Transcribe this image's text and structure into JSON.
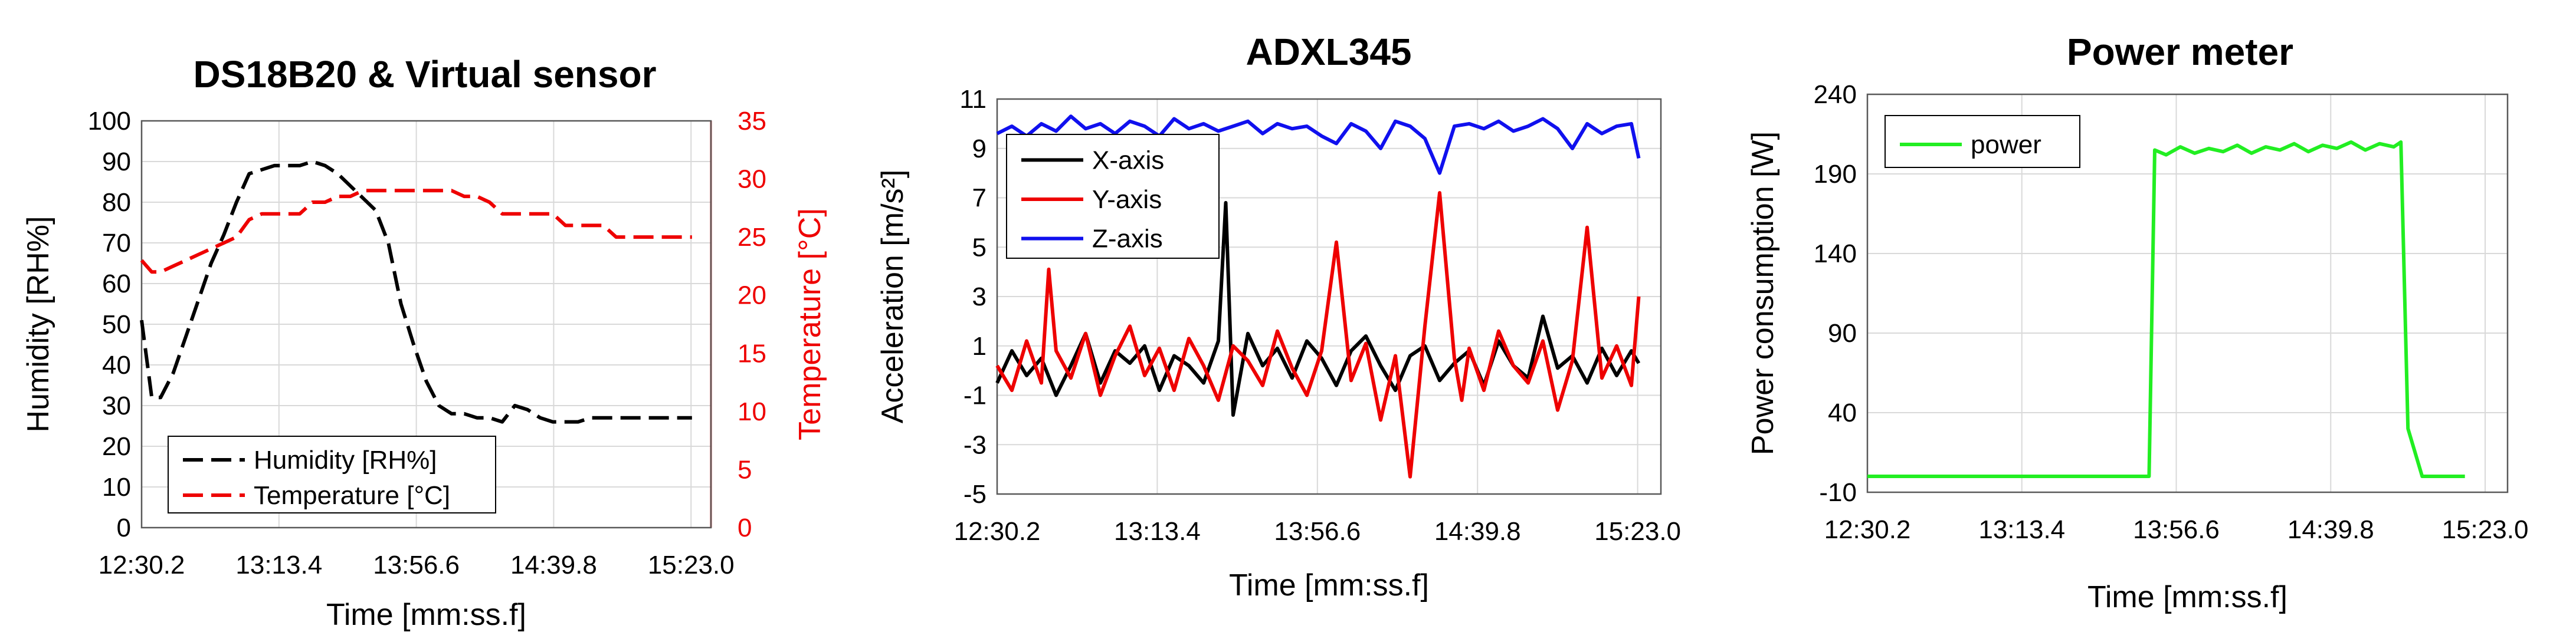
{
  "charts": [
    {
      "type": "line",
      "title": "DS18B20 & Virtual sensor",
      "xlabel": "Time [mm:ss.f]",
      "ylabel": "Humidity [RH%]",
      "y2label": "Temperature [°C]",
      "x_ticks": [
        "12:30.2",
        "13:13.4",
        "13:56.6",
        "14:39.8",
        "15:23.0"
      ],
      "xlim": [
        0,
        4.5
      ],
      "ylim": [
        0,
        100
      ],
      "y_ticks": [
        0,
        10,
        20,
        30,
        40,
        50,
        60,
        70,
        80,
        90,
        100
      ],
      "y2lim": [
        0,
        35
      ],
      "y2_ticks": [
        0,
        5,
        10,
        15,
        20,
        25,
        30,
        35
      ],
      "grid": true,
      "legend_position": "bottom-left",
      "series": [
        {
          "name": "Humidity [RH%]",
          "color": "#000000",
          "axis": "left",
          "dash": true,
          "x": [
            0,
            0.08,
            0.15,
            0.25,
            0.35,
            0.45,
            0.55,
            0.65,
            0.75,
            0.85,
            0.95,
            1.05,
            1.15,
            1.25,
            1.35,
            1.45,
            1.55,
            1.65,
            1.75,
            1.85,
            1.95,
            2.05,
            2.15,
            2.25,
            2.35,
            2.45,
            2.55,
            2.65,
            2.75,
            2.85,
            2.95,
            3.05,
            3.15,
            3.25,
            3.35,
            3.45,
            3.55,
            3.65,
            3.75,
            3.85,
            3.95,
            4.05,
            4.15,
            4.25,
            4.35
          ],
          "values": [
            51,
            32,
            32,
            38,
            47,
            56,
            65,
            72,
            80,
            87,
            88,
            89,
            89,
            89,
            90,
            89,
            87,
            84,
            81,
            78,
            70,
            55,
            45,
            36,
            30,
            28,
            28,
            27,
            27,
            26,
            30,
            29,
            27,
            26,
            26,
            26,
            27,
            27,
            27,
            27,
            27,
            27,
            27,
            27,
            27
          ]
        },
        {
          "name": "Temperature [°C]",
          "color": "#ee0000",
          "axis": "right",
          "dash": true,
          "x": [
            0,
            0.08,
            0.15,
            0.25,
            0.35,
            0.45,
            0.55,
            0.65,
            0.75,
            0.85,
            0.95,
            1.05,
            1.15,
            1.25,
            1.35,
            1.45,
            1.55,
            1.65,
            1.75,
            1.85,
            1.95,
            2.05,
            2.15,
            2.25,
            2.35,
            2.45,
            2.55,
            2.65,
            2.75,
            2.85,
            2.95,
            3.05,
            3.15,
            3.25,
            3.35,
            3.45,
            3.55,
            3.65,
            3.75,
            3.85,
            3.95,
            4.05,
            4.15,
            4.25,
            4.35
          ],
          "values": [
            23,
            22,
            22,
            22.5,
            23,
            23.5,
            24,
            24.5,
            25,
            26.5,
            27,
            27,
            27,
            27,
            28,
            28,
            28.5,
            28.5,
            29,
            29,
            29,
            29,
            29,
            29,
            29,
            29,
            28.5,
            28.5,
            28,
            27,
            27,
            27,
            27,
            27,
            26,
            26,
            26,
            26,
            25,
            25,
            25,
            25,
            25,
            25,
            25
          ]
        }
      ]
    },
    {
      "type": "line",
      "title": "ADXL345",
      "xlabel": "Time [mm:ss.f]",
      "ylabel": "Acceleration [m/s²]",
      "x_ticks": [
        "12:30.2",
        "13:13.4",
        "13:56.6",
        "14:39.8",
        "15:23.0"
      ],
      "xlim": [
        0,
        4.5
      ],
      "ylim": [
        -5,
        11
      ],
      "y_ticks": [
        -5,
        -3,
        -1,
        1,
        3,
        5,
        7,
        9,
        11
      ],
      "grid": true,
      "legend_position": "top-left",
      "series": [
        {
          "name": "X-axis",
          "color": "#000000",
          "axis": "left",
          "x": [
            0,
            0.1,
            0.2,
            0.3,
            0.4,
            0.5,
            0.6,
            0.7,
            0.8,
            0.9,
            1.0,
            1.1,
            1.2,
            1.3,
            1.4,
            1.5,
            1.55,
            1.6,
            1.7,
            1.8,
            1.9,
            2.0,
            2.1,
            2.2,
            2.3,
            2.4,
            2.5,
            2.6,
            2.7,
            2.8,
            2.9,
            3.0,
            3.1,
            3.2,
            3.3,
            3.4,
            3.5,
            3.6,
            3.7,
            3.8,
            3.9,
            4.0,
            4.1,
            4.2,
            4.3,
            4.35
          ],
          "values": [
            -0.5,
            0.8,
            -0.2,
            0.5,
            -1.0,
            0.2,
            1.5,
            -0.5,
            0.8,
            0.3,
            1.0,
            -0.8,
            0.6,
            0.2,
            -0.5,
            1.2,
            6.8,
            -1.8,
            1.5,
            0.2,
            0.9,
            -0.3,
            1.2,
            0.5,
            -0.6,
            0.8,
            1.4,
            0.2,
            -0.8,
            0.6,
            1.0,
            -0.4,
            0.3,
            0.8,
            -0.6,
            1.2,
            0.2,
            -0.3,
            2.2,
            0.1,
            0.6,
            -0.5,
            0.9,
            -0.2,
            0.8,
            0.3
          ]
        },
        {
          "name": "Y-axis",
          "color": "#ee0000",
          "axis": "left",
          "x": [
            0,
            0.1,
            0.2,
            0.3,
            0.35,
            0.4,
            0.5,
            0.6,
            0.7,
            0.8,
            0.9,
            1.0,
            1.1,
            1.2,
            1.3,
            1.4,
            1.5,
            1.6,
            1.7,
            1.8,
            1.9,
            2.0,
            2.1,
            2.2,
            2.3,
            2.4,
            2.5,
            2.6,
            2.7,
            2.8,
            2.9,
            3.0,
            3.1,
            3.15,
            3.2,
            3.3,
            3.4,
            3.5,
            3.6,
            3.7,
            3.8,
            3.9,
            4.0,
            4.1,
            4.2,
            4.3,
            4.35
          ],
          "values": [
            0.2,
            -0.8,
            1.2,
            -0.5,
            4.1,
            0.8,
            -0.3,
            1.5,
            -1.0,
            0.6,
            1.8,
            -0.2,
            0.9,
            -0.8,
            1.3,
            0.2,
            -1.2,
            1.0,
            0.4,
            -0.6,
            1.6,
            0.1,
            -1.0,
            0.8,
            5.2,
            -0.4,
            1.1,
            -2.0,
            0.6,
            -4.3,
            1.8,
            7.2,
            0.5,
            -1.2,
            0.9,
            -0.8,
            1.6,
            0.2,
            -0.5,
            1.2,
            -1.6,
            0.4,
            5.8,
            -0.3,
            1.0,
            -0.6,
            3.0
          ]
        },
        {
          "name": "Z-axis",
          "color": "#1010ee",
          "axis": "left",
          "x": [
            0,
            0.1,
            0.2,
            0.3,
            0.4,
            0.5,
            0.6,
            0.7,
            0.8,
            0.9,
            1.0,
            1.1,
            1.2,
            1.3,
            1.4,
            1.5,
            1.6,
            1.7,
            1.8,
            1.9,
            2.0,
            2.1,
            2.2,
            2.3,
            2.4,
            2.5,
            2.6,
            2.7,
            2.8,
            2.9,
            3.0,
            3.1,
            3.2,
            3.3,
            3.4,
            3.5,
            3.6,
            3.7,
            3.8,
            3.9,
            4.0,
            4.1,
            4.2,
            4.3,
            4.35
          ],
          "values": [
            9.6,
            9.9,
            9.5,
            10.0,
            9.7,
            10.3,
            9.8,
            10.0,
            9.6,
            10.1,
            9.9,
            9.5,
            10.2,
            9.8,
            10.0,
            9.7,
            9.9,
            10.1,
            9.6,
            10.0,
            9.8,
            9.9,
            9.5,
            9.2,
            10.0,
            9.7,
            9.0,
            10.1,
            9.9,
            9.4,
            8.0,
            9.9,
            10.0,
            9.8,
            10.1,
            9.7,
            9.9,
            10.2,
            9.8,
            9.0,
            10.0,
            9.6,
            9.9,
            10.0,
            8.6
          ]
        }
      ]
    },
    {
      "type": "line",
      "title": "Power meter",
      "xlabel": "Time [mm:ss.f]",
      "ylabel": "Power consumption [W]",
      "x_ticks": [
        "12:30.2",
        "13:13.4",
        "13:56.6",
        "14:39.8",
        "15:23.0"
      ],
      "xlim": [
        0,
        4.5
      ],
      "ylim": [
        -10,
        240
      ],
      "y_ticks": [
        -10,
        40,
        90,
        140,
        190,
        240
      ],
      "grid": true,
      "legend_position": "top-left",
      "series": [
        {
          "name": "power",
          "color": "#22ee22",
          "axis": "left",
          "x": [
            0,
            0.5,
            1.0,
            1.5,
            1.9,
            1.98,
            2.02,
            2.1,
            2.2,
            2.3,
            2.4,
            2.5,
            2.6,
            2.7,
            2.8,
            2.9,
            3.0,
            3.1,
            3.2,
            3.3,
            3.4,
            3.5,
            3.6,
            3.7,
            3.75,
            3.8,
            3.9,
            4.0,
            4.1,
            4.2
          ],
          "values": [
            0,
            0,
            0,
            0,
            0,
            0,
            205,
            202,
            207,
            203,
            206,
            204,
            208,
            203,
            207,
            205,
            209,
            204,
            208,
            206,
            210,
            205,
            209,
            207,
            210,
            30,
            0,
            0,
            0,
            0
          ]
        }
      ]
    }
  ]
}
